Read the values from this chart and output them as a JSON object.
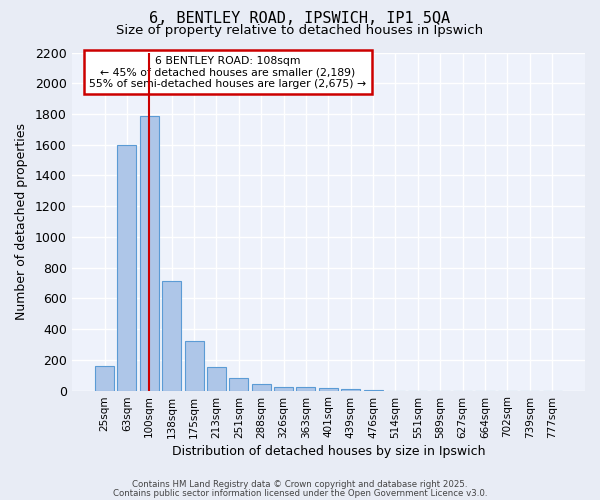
{
  "title1": "6, BENTLEY ROAD, IPSWICH, IP1 5QA",
  "title2": "Size of property relative to detached houses in Ipswich",
  "xlabel": "Distribution of detached houses by size in Ipswich",
  "ylabel": "Number of detached properties",
  "bar_values": [
    160,
    1600,
    1790,
    710,
    320,
    155,
    80,
    45,
    25,
    20,
    15,
    10,
    5,
    0,
    0,
    0,
    0,
    0,
    0,
    0,
    0
  ],
  "categories": [
    "25sqm",
    "63sqm",
    "100sqm",
    "138sqm",
    "175sqm",
    "213sqm",
    "251sqm",
    "288sqm",
    "326sqm",
    "363sqm",
    "401sqm",
    "439sqm",
    "476sqm",
    "514sqm",
    "551sqm",
    "589sqm",
    "627sqm",
    "664sqm",
    "702sqm",
    "739sqm",
    "777sqm"
  ],
  "bar_color": "#aec6e8",
  "bar_edge_color": "#5b9bd5",
  "fig_background_color": "#e8ecf5",
  "ax_background_color": "#eef2fb",
  "grid_color": "#ffffff",
  "red_line_x": 2,
  "annotation_text": "6 BENTLEY ROAD: 108sqm\n← 45% of detached houses are smaller (2,189)\n55% of semi-detached houses are larger (2,675) →",
  "annotation_box_color": "#ffffff",
  "annotation_box_edge": "#cc0000",
  "ylim": [
    0,
    2200
  ],
  "yticks": [
    0,
    200,
    400,
    600,
    800,
    1000,
    1200,
    1400,
    1600,
    1800,
    2000,
    2200
  ],
  "footer1": "Contains HM Land Registry data © Crown copyright and database right 2025.",
  "footer2": "Contains public sector information licensed under the Open Government Licence v3.0."
}
